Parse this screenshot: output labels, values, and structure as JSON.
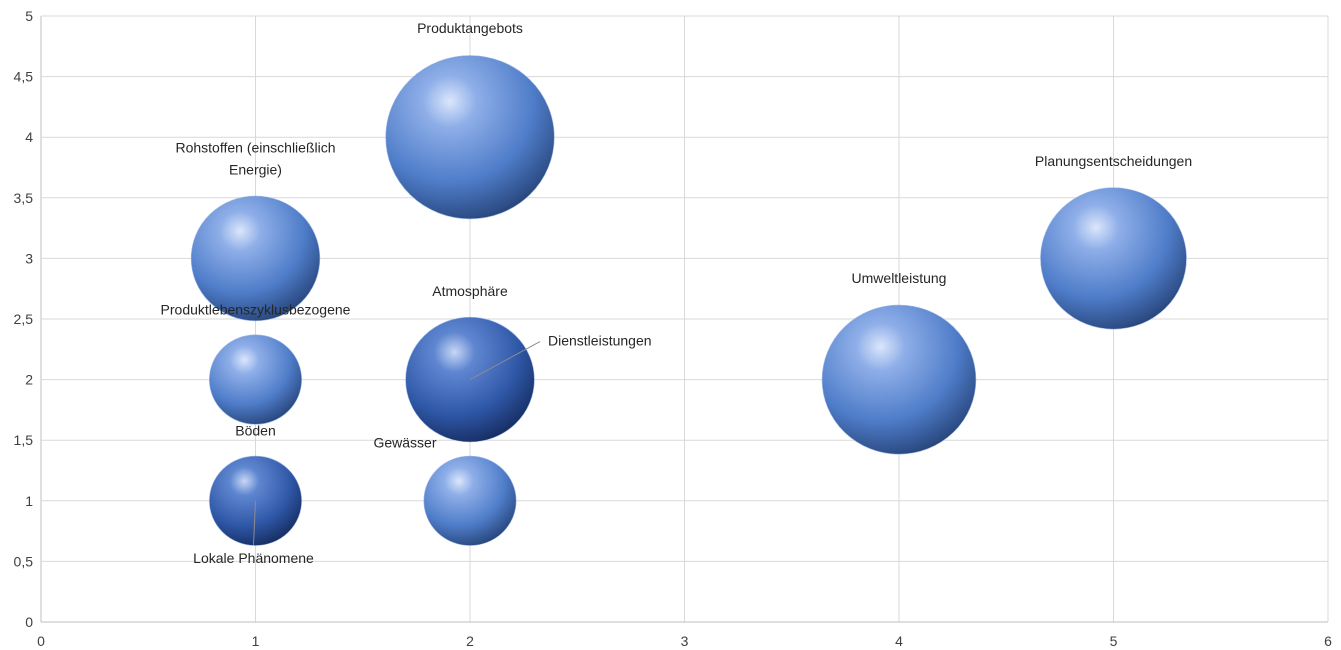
{
  "chart_data": {
    "type": "bubble",
    "xlim": [
      0,
      6
    ],
    "ylim": [
      0,
      5
    ],
    "x_ticks": [
      "0",
      "1",
      "2",
      "3",
      "4",
      "5",
      "6"
    ],
    "y_ticks": [
      "0",
      "0,5",
      "1",
      "1,5",
      "2",
      "2,5",
      "3",
      "3,5",
      "4",
      "4,5",
      "5"
    ],
    "grid": true,
    "points": [
      {
        "label": "Produktangebots",
        "x": 2,
        "y": 4,
        "size": 6,
        "color": "#4f7dc9"
      },
      {
        "label": "Rohstoffen (einschließlich Energie)",
        "x": 1,
        "y": 3,
        "size": 3.5,
        "color": "#4f7dc9"
      },
      {
        "label": "Planungsentscheidungen",
        "x": 5,
        "y": 3,
        "size": 4.5,
        "color": "#4f7dc9"
      },
      {
        "label": "Produktlebenszyklusbezogene",
        "x": 1,
        "y": 2,
        "size": 1.8,
        "color": "#4f7dc9"
      },
      {
        "label": "Atmosphäre",
        "x": 2,
        "y": 2,
        "size": 3.5,
        "color": "#3a64b5"
      },
      {
        "label": "Dienstleistungen",
        "x": 2,
        "y": 2,
        "size": 0,
        "color": "#3a64b5"
      },
      {
        "label": "Umweltleistung",
        "x": 4,
        "y": 2,
        "size": 5,
        "color": "#4f7dc9"
      },
      {
        "label": "Böden",
        "x": 1,
        "y": 1,
        "size": 1.8,
        "color": "#3a64b5"
      },
      {
        "label": "Lokale Phänomene",
        "x": 1,
        "y": 1,
        "size": 0,
        "color": "#3a64b5"
      },
      {
        "label": "Gewässer",
        "x": 2,
        "y": 1,
        "size": 1.8,
        "color": "#4f7dc9"
      }
    ]
  }
}
